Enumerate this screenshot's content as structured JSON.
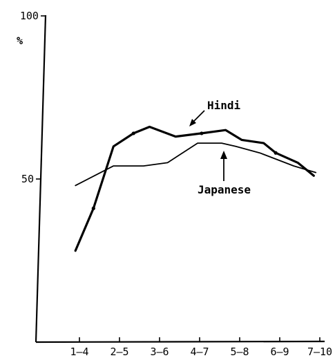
{
  "chart_data": {
    "type": "line",
    "title": "",
    "xlabel": "",
    "ylabel": "%",
    "y_ticks": [
      {
        "value": 50,
        "label": "50"
      },
      {
        "value": 100,
        "label": "100"
      }
    ],
    "ylim": [
      0,
      100
    ],
    "categories": [
      "1-4",
      "2-5",
      "3-6",
      "4-7",
      "5-8",
      "6-9",
      "7-10"
    ],
    "x_ticks": [
      1,
      2,
      3,
      4,
      5,
      6,
      7
    ],
    "grid": false,
    "legend": "none",
    "series": [
      {
        "name": "Hindi",
        "x": [
          0.9,
          1.35,
          1.85,
          2.35,
          2.75,
          3.4,
          4.05,
          4.65,
          5.05,
          5.6,
          5.9,
          6.45,
          6.85
        ],
        "values": [
          28,
          41,
          60,
          64,
          66,
          63,
          64,
          65,
          62,
          61,
          58,
          55,
          51
        ]
      },
      {
        "name": "Japanese",
        "x": [
          0.9,
          1.85,
          2.6,
          3.2,
          3.95,
          4.55,
          4.9,
          5.5,
          6.35,
          6.9
        ],
        "values": [
          48,
          54,
          54,
          55,
          61,
          61,
          60,
          58,
          54,
          52
        ]
      }
    ],
    "annotations": [
      {
        "text": "Hindi",
        "series": "Hindi"
      },
      {
        "text": "Japanese",
        "series": "Japanese"
      }
    ]
  }
}
